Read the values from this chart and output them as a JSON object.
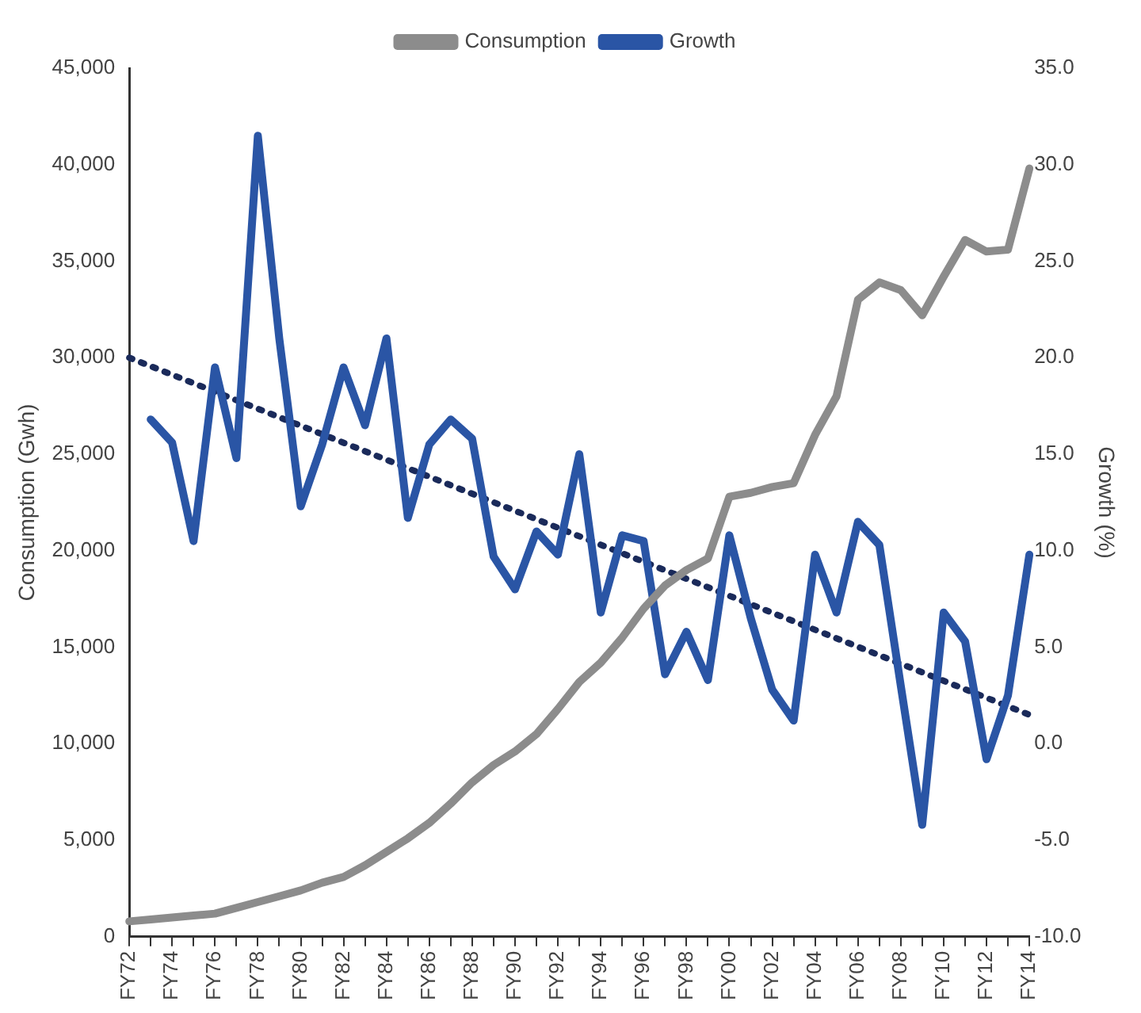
{
  "chart_data": {
    "type": "line",
    "xlabel": null,
    "ylabel": "Consumption (Gwh)",
    "y2label": "Growth (%)",
    "categories": [
      "FY72",
      null,
      "FY74",
      null,
      "FY76",
      null,
      "FY78",
      null,
      "FY80",
      null,
      "FY82",
      null,
      "FY84",
      null,
      "FY86",
      null,
      "FY88",
      null,
      "FY90",
      null,
      "FY92",
      null,
      "FY94",
      null,
      "FY96",
      null,
      "FY98",
      null,
      "FY00",
      null,
      "FY02",
      null,
      "FY04",
      null,
      "FY06",
      null,
      "FY08",
      null,
      "FY10",
      null,
      "FY12",
      null,
      "FY14"
    ],
    "series": [
      {
        "name": "Consumption",
        "color": "#8c8c8c",
        "values": [
          800,
          900,
          1000,
          1100,
          1200,
          1500,
          1800,
          2100,
          2400,
          2800,
          3100,
          3700,
          4400,
          5100,
          5900,
          6900,
          8000,
          8900,
          9600,
          10500,
          11800,
          13200,
          14200,
          15500,
          17000,
          18200,
          19000,
          19600,
          22800,
          23000,
          23300,
          23500,
          26000,
          28000,
          33000,
          33900,
          33500,
          32200,
          34200,
          36100,
          35500,
          35600,
          39800
        ]
      },
      {
        "name": "Growth",
        "color": "#2a55a5",
        "axis": "y2",
        "values": [
          null,
          16.8,
          15.6,
          10.5,
          19.5,
          14.8,
          31.5,
          21,
          12.3,
          15.5,
          19.5,
          16.5,
          21,
          11.7,
          15.5,
          16.8,
          15.8,
          9.7,
          8.0,
          11.0,
          9.8,
          15.0,
          6.8,
          10.8,
          10.5,
          3.6,
          5.8,
          3.3,
          10.8,
          6.5,
          2.8,
          1.2,
          9.8,
          6.8,
          11.5,
          10.3,
          3.0,
          -4.2,
          6.8,
          5.3,
          -0.8,
          2.5,
          9.8
        ]
      },
      {
        "type": "line",
        "color": "#1a2a5a",
        "axis": "y2",
        "line_style": "dotted",
        "x": [
          "FY72",
          "FY14"
        ],
        "values": [
          20.0,
          1.5
        ]
      }
    ],
    "ylim": [
      0,
      45000
    ],
    "yticks": [
      {
        "value": 0,
        "label": "0"
      },
      {
        "value": 5000,
        "label": "5,000"
      },
      {
        "value": 10000,
        "label": "10,000"
      },
      {
        "value": 15000,
        "label": "15,000"
      },
      {
        "value": 20000,
        "label": "20,000"
      },
      {
        "value": 25000,
        "label": "25,000"
      },
      {
        "value": 30000,
        "label": "30,000"
      },
      {
        "value": 35000,
        "label": "35,000"
      },
      {
        "value": 40000,
        "label": "40,000"
      },
      {
        "value": 45000,
        "label": "45,000"
      }
    ],
    "y2lim": [
      -10,
      35
    ],
    "y2ticks": [
      {
        "value": -10,
        "label": "-10.0"
      },
      {
        "value": -5,
        "label": "-5.0"
      },
      {
        "value": 0,
        "label": "0.0"
      },
      {
        "value": 5,
        "label": "5.0"
      },
      {
        "value": 10,
        "label": "10.0"
      },
      {
        "value": 15,
        "label": "15.0"
      },
      {
        "value": 20,
        "label": "20.0"
      },
      {
        "value": 25,
        "label": "25.0"
      },
      {
        "value": 30,
        "label": "30.0"
      },
      {
        "value": 35,
        "label": "35.0"
      }
    ],
    "grid": false,
    "legend": "top",
    "marker": "none",
    "line_style": "solid"
  }
}
